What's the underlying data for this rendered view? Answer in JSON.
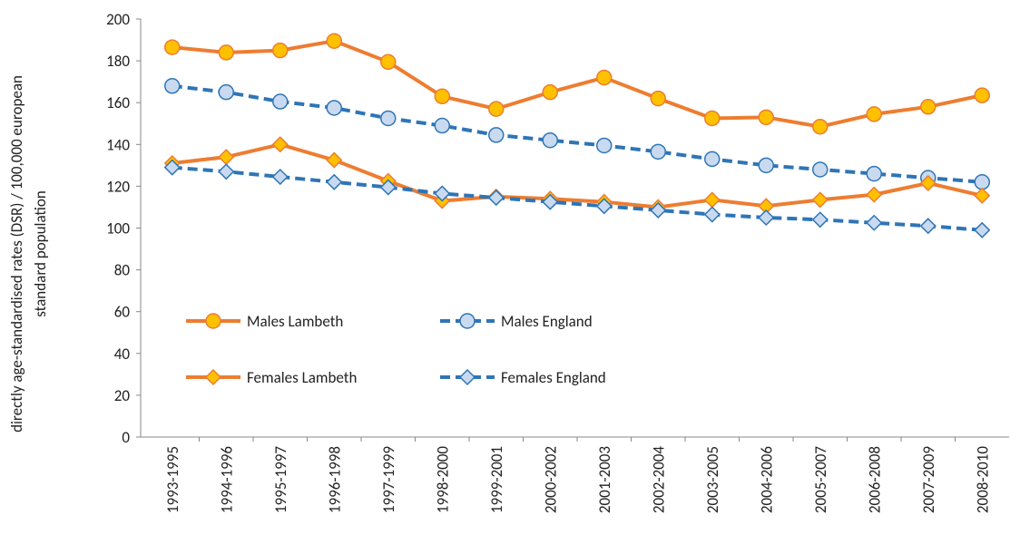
{
  "chart_data": {
    "type": "line",
    "y_label": [
      "directly age-standardised rates (DSR) / 100,000 european",
      "standard population"
    ],
    "categories": [
      "1993-1995",
      "1994-1996",
      "1995-1997",
      "1996-1998",
      "1997-1999",
      "1998-2000",
      "1999-2001",
      "2000-2002",
      "2001-2003",
      "2002-2004",
      "2003-2005",
      "2004-2006",
      "2005-2007",
      "2006-2008",
      "2007-2009",
      "2008-2010"
    ],
    "series": [
      {
        "name": "Males Lambeth",
        "color": "#ed7d31",
        "marker_fill": "#ffc000",
        "marker": "circle",
        "dashed": false,
        "values": [
          186.5,
          184,
          185,
          189.5,
          179.5,
          163,
          157,
          165,
          172,
          162,
          152.5,
          153,
          148.5,
          154.5,
          158,
          163.5
        ]
      },
      {
        "name": "Males England",
        "color": "#2e75b6",
        "marker_fill": "#c9daf0",
        "marker": "circle",
        "dashed": true,
        "values": [
          168,
          165,
          160.5,
          157.5,
          152.5,
          149,
          144.5,
          142,
          139.5,
          136.5,
          133,
          130,
          128,
          126,
          124,
          122
        ]
      },
      {
        "name": "Females Lambeth",
        "color": "#ed7d31",
        "marker_fill": "#ffc000",
        "marker": "diamond",
        "dashed": false,
        "values": [
          131,
          134,
          140,
          132.5,
          122.5,
          113,
          115,
          114,
          112.5,
          110,
          113.5,
          110.5,
          113.5,
          116,
          121.5,
          115.5
        ]
      },
      {
        "name": "Females England",
        "color": "#2e75b6",
        "marker_fill": "#c9daf0",
        "marker": "diamond",
        "dashed": true,
        "values": [
          129,
          127,
          124.5,
          122,
          119.5,
          116.5,
          114.5,
          112.5,
          110.5,
          108.5,
          106.5,
          105,
          104,
          102.5,
          101,
          99
        ]
      }
    ],
    "ylim": [
      0,
      200
    ],
    "yticks": [
      0,
      20,
      40,
      60,
      80,
      100,
      120,
      140,
      160,
      180,
      200
    ],
    "grid": false
  }
}
